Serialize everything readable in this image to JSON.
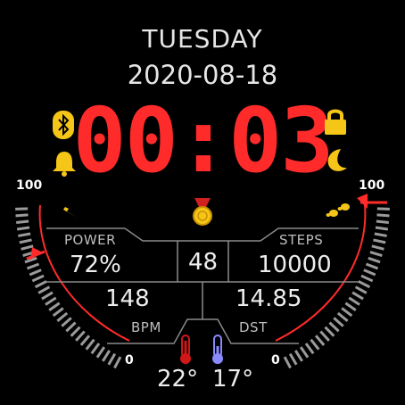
{
  "day": "TUESDAY",
  "date": "2020-08-18",
  "time": "00:03",
  "battery": {
    "label": "POWER",
    "value": "72%",
    "level": 0.72
  },
  "steps": {
    "label": "STEPS",
    "value": "10000",
    "level": 1.0
  },
  "center_value": "48",
  "heart": {
    "label": "BPM",
    "value": "148"
  },
  "distance": {
    "label": "DST",
    "value": "14.85"
  },
  "temp_high": "22°",
  "temp_low": "17°",
  "gauge_left": {
    "max": "100",
    "min": "0"
  },
  "gauge_right": {
    "max": "100",
    "min": "0"
  },
  "colors": {
    "accent": "#ff2b2b",
    "icon": "#f5c518",
    "cold": "#8a8aff",
    "hot": "#d01818"
  },
  "icons": [
    "bluetooth-icon",
    "bell-icon",
    "lightning-icon",
    "lock-icon",
    "moon-icon",
    "footsteps-icon",
    "medal-icon",
    "thermometer-hot-icon",
    "thermometer-cold-icon"
  ]
}
